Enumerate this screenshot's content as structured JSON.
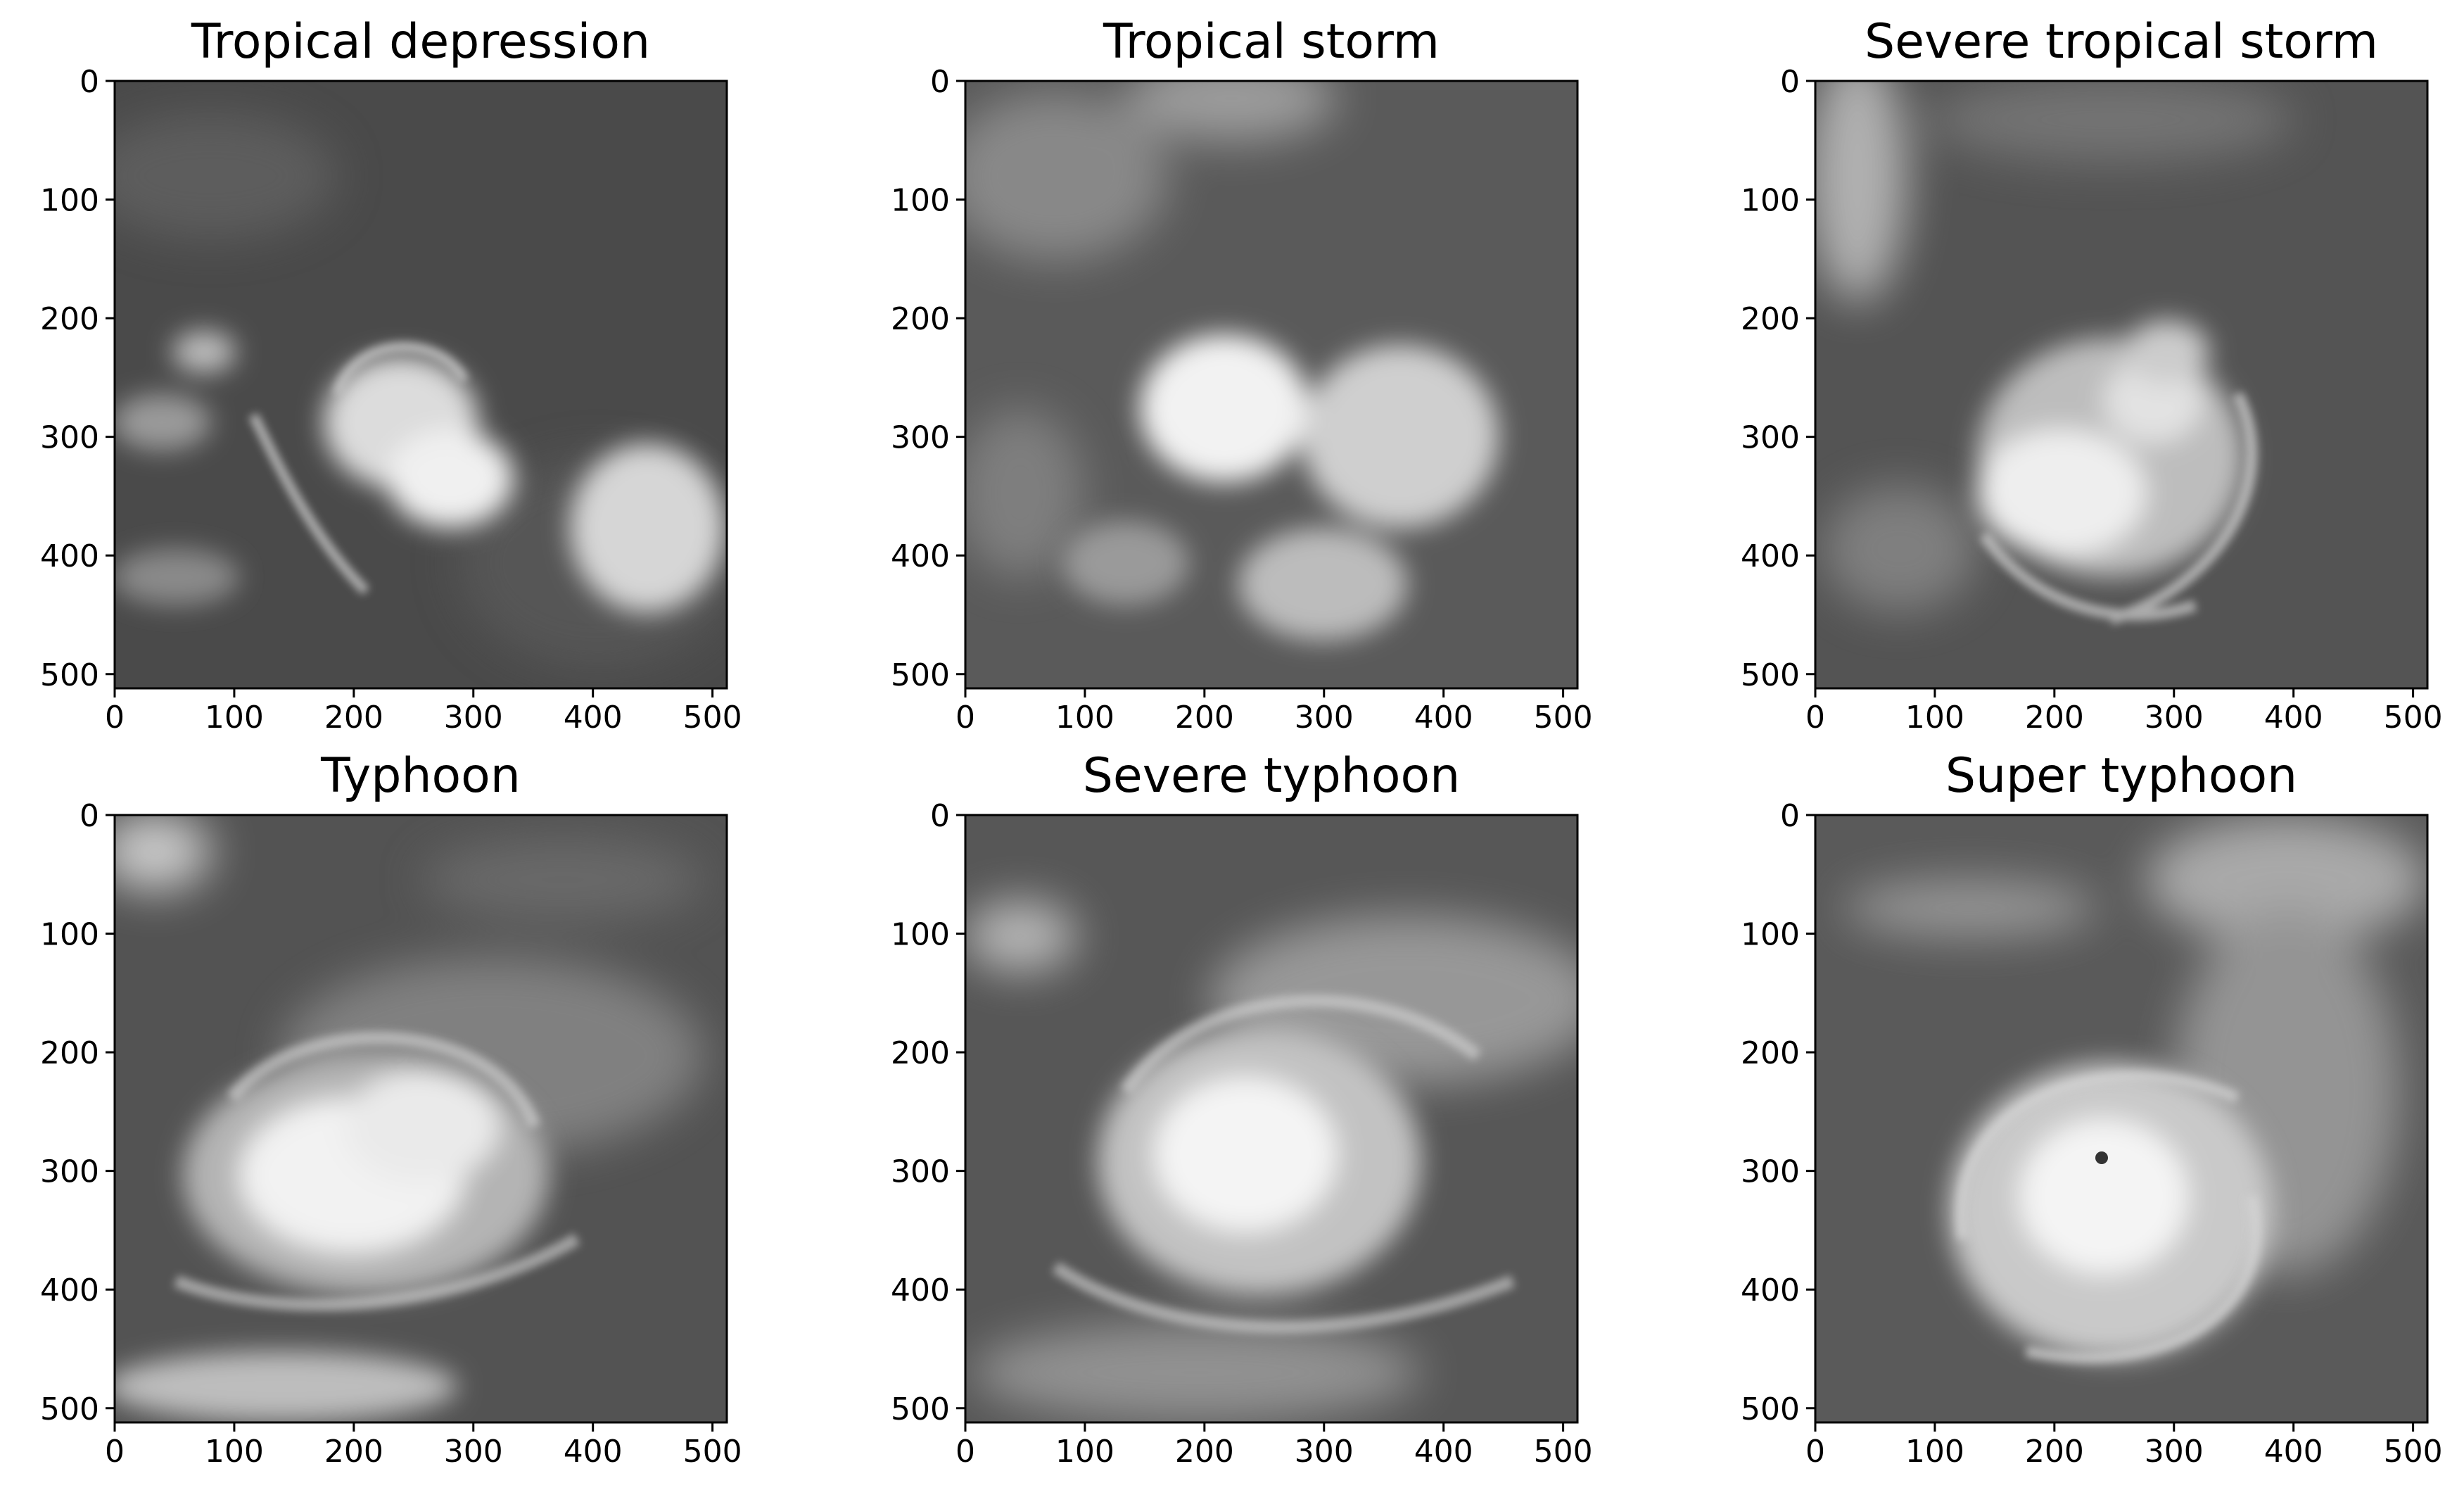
{
  "figure": {
    "panels": [
      {
        "title": "Tropical depression"
      },
      {
        "title": "Tropical storm"
      },
      {
        "title": "Severe tropical storm"
      },
      {
        "title": "Typhoon"
      },
      {
        "title": "Severe typhoon"
      },
      {
        "title": "Super typhoon"
      }
    ],
    "x_ticks": [
      "0",
      "100",
      "200",
      "300",
      "400",
      "500"
    ],
    "y_ticks": [
      "0",
      "100",
      "200",
      "300",
      "400",
      "500"
    ],
    "image_extent": [
      0,
      512
    ],
    "colormap": "grayscale",
    "colors": {
      "background": "#ffffff",
      "axis": "#000000",
      "cloud": "#f4f4f4",
      "ocean": "#5e5e5e"
    }
  }
}
